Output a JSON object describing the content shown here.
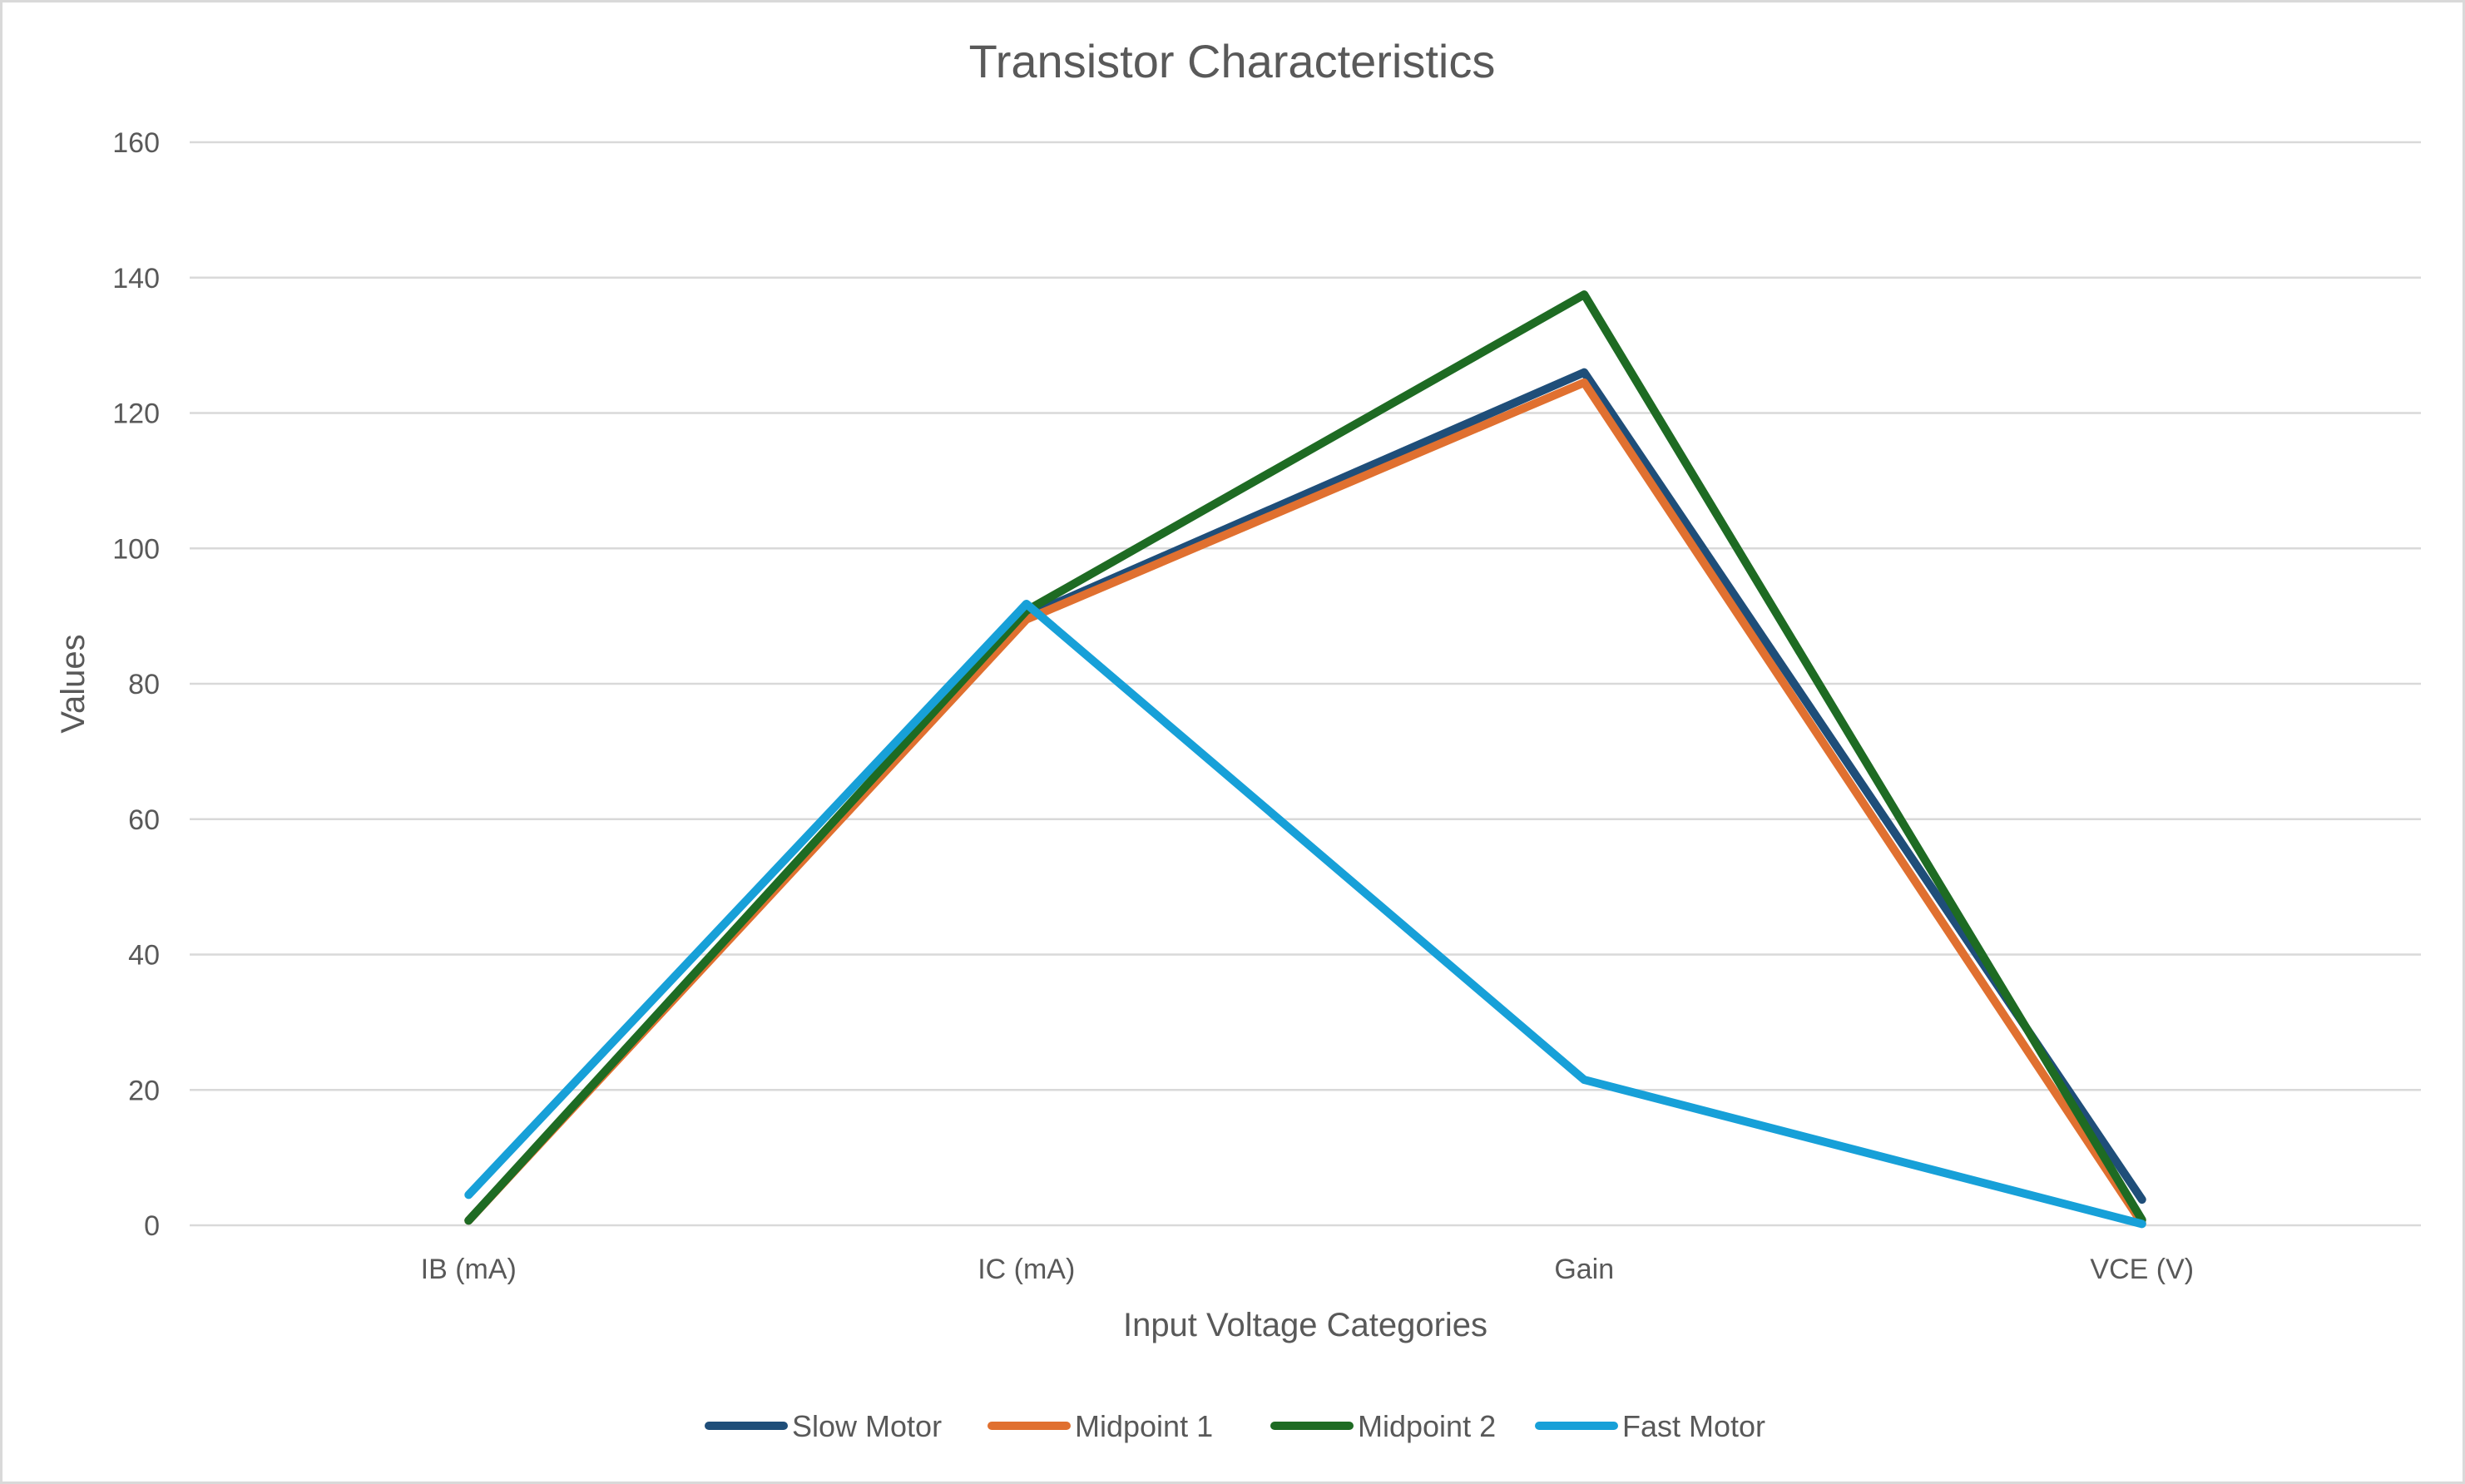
{
  "chart_data": {
    "type": "line",
    "title": "Transistor Characteristics",
    "xlabel": "Input Voltage Categories",
    "ylabel": "Values",
    "categories": [
      "IB (mA)",
      "IC (mA)",
      "Gain",
      "VCE (V)"
    ],
    "ylim": [
      0,
      160
    ],
    "yticks": [
      0,
      20,
      40,
      60,
      80,
      100,
      120,
      140,
      160
    ],
    "grid": true,
    "legend": "bottom",
    "series": [
      {
        "name": "Slow Motor",
        "color": "#1f4e79",
        "values": [
          0.7,
          90.0,
          126.0,
          3.8
        ]
      },
      {
        "name": "Midpoint 1",
        "color": "#e07030",
        "values": [
          0.7,
          89.5,
          124.5,
          0.3
        ]
      },
      {
        "name": "Midpoint 2",
        "color": "#1e6b23",
        "values": [
          0.7,
          90.8,
          137.5,
          0.8
        ]
      },
      {
        "name": "Fast Motor",
        "color": "#17a0d8",
        "values": [
          4.5,
          91.8,
          21.5,
          0.2
        ]
      }
    ]
  }
}
